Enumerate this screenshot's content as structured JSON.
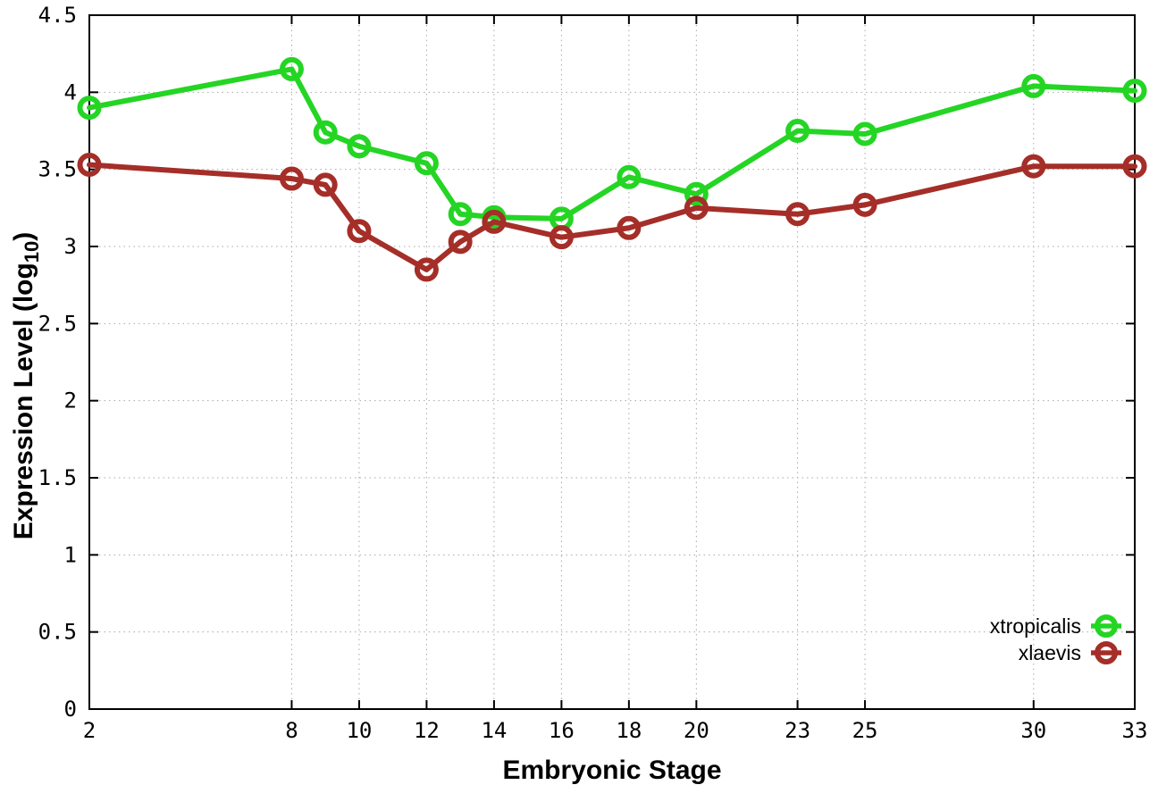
{
  "chart_data": {
    "type": "line",
    "title": "",
    "xlabel": "Embryonic Stage",
    "ylabel": "Expression Level (log10)",
    "ylabel_rich": {
      "pre": "Expression Level (log",
      "sub": "10",
      "post": ")"
    },
    "x": [
      2,
      8,
      9,
      10,
      12,
      13,
      14,
      16,
      18,
      20,
      23,
      25,
      30,
      33
    ],
    "series": [
      {
        "name": "xtropicalis",
        "color": "#24d524",
        "marker": "open-circle",
        "values": [
          3.9,
          4.15,
          3.74,
          3.65,
          3.54,
          3.21,
          3.19,
          3.18,
          3.45,
          3.34,
          3.75,
          3.73,
          4.04,
          4.01
        ]
      },
      {
        "name": "xlaevis",
        "color": "#a52e28",
        "marker": "open-circle",
        "values": [
          3.53,
          3.44,
          3.4,
          3.1,
          2.85,
          3.03,
          3.16,
          3.06,
          3.12,
          3.25,
          3.21,
          3.27,
          3.52,
          3.52
        ]
      }
    ],
    "xticks": [
      2,
      8,
      10,
      12,
      14,
      16,
      18,
      20,
      23,
      25,
      30,
      33
    ],
    "yticks": [
      0,
      0.5,
      1,
      1.5,
      2,
      2.5,
      3,
      3.5,
      4,
      4.5
    ],
    "xlim": [
      2,
      33
    ],
    "ylim": [
      0,
      4.5
    ],
    "grid": true,
    "grid_style": "dotted",
    "border": "full-box-mirrored-ticks",
    "legend_position": "bottom-right-inside",
    "colors": {
      "axis": "#000000",
      "grid": "#a8a8a8",
      "text": "#000000",
      "background": "#ffffff"
    }
  }
}
